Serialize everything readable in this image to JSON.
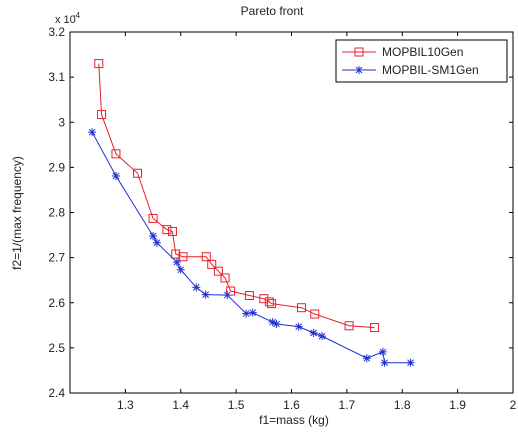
{
  "chart_data": {
    "type": "line",
    "title": "Pareto front",
    "xlabel": "f1=mass (kg)",
    "ylabel": "f2=1/(max frequency)",
    "y_exponent_label": "x 10",
    "y_exponent_power": "-4",
    "xlim": [
      1.2,
      2.0
    ],
    "ylim": [
      2.4,
      3.2
    ],
    "xticks": [
      1.3,
      1.4,
      1.5,
      1.6,
      1.7,
      1.8,
      1.9,
      2.0
    ],
    "yticks": [
      2.4,
      2.5,
      2.6,
      2.7,
      2.8,
      2.9,
      3.0,
      3.1,
      3.2
    ],
    "xtick_labels": [
      "1.3",
      "1.4",
      "1.5",
      "1.6",
      "1.7",
      "1.8",
      "1.9",
      "2"
    ],
    "ytick_labels": [
      "2.4",
      "2.5",
      "2.6",
      "2.7",
      "2.8",
      "2.9",
      "3",
      "3.1",
      "3.2"
    ],
    "legend_position": "top-right",
    "series": [
      {
        "name": "MOPBIL10Gen",
        "color": "#e8202a",
        "marker": "square",
        "points": [
          [
            1.252,
            3.13
          ],
          [
            1.257,
            3.017
          ],
          [
            1.283,
            2.93
          ],
          [
            1.322,
            2.887
          ],
          [
            1.35,
            2.787
          ],
          [
            1.375,
            2.762
          ],
          [
            1.385,
            2.758
          ],
          [
            1.391,
            2.708
          ],
          [
            1.404,
            2.702
          ],
          [
            1.446,
            2.702
          ],
          [
            1.456,
            2.685
          ],
          [
            1.468,
            2.67
          ],
          [
            1.48,
            2.655
          ],
          [
            1.49,
            2.626
          ],
          [
            1.524,
            2.616
          ],
          [
            1.55,
            2.609
          ],
          [
            1.56,
            2.602
          ],
          [
            1.564,
            2.598
          ],
          [
            1.618,
            2.589
          ],
          [
            1.642,
            2.575
          ],
          [
            1.704,
            2.549
          ],
          [
            1.75,
            2.545
          ]
        ]
      },
      {
        "name": "MOPBIL-SM1Gen",
        "color": "#2030d0",
        "marker": "star",
        "points": [
          [
            1.24,
            2.978
          ],
          [
            1.283,
            2.881
          ],
          [
            1.35,
            2.748
          ],
          [
            1.357,
            2.733
          ],
          [
            1.393,
            2.69
          ],
          [
            1.4,
            2.673
          ],
          [
            1.428,
            2.634
          ],
          [
            1.445,
            2.618
          ],
          [
            1.484,
            2.617
          ],
          [
            1.518,
            2.576
          ],
          [
            1.53,
            2.578
          ],
          [
            1.566,
            2.557
          ],
          [
            1.573,
            2.553
          ],
          [
            1.613,
            2.547
          ],
          [
            1.64,
            2.533
          ],
          [
            1.655,
            2.526
          ],
          [
            1.736,
            2.477
          ],
          [
            1.765,
            2.491
          ],
          [
            1.768,
            2.467
          ],
          [
            1.815,
            2.467
          ]
        ]
      }
    ]
  }
}
